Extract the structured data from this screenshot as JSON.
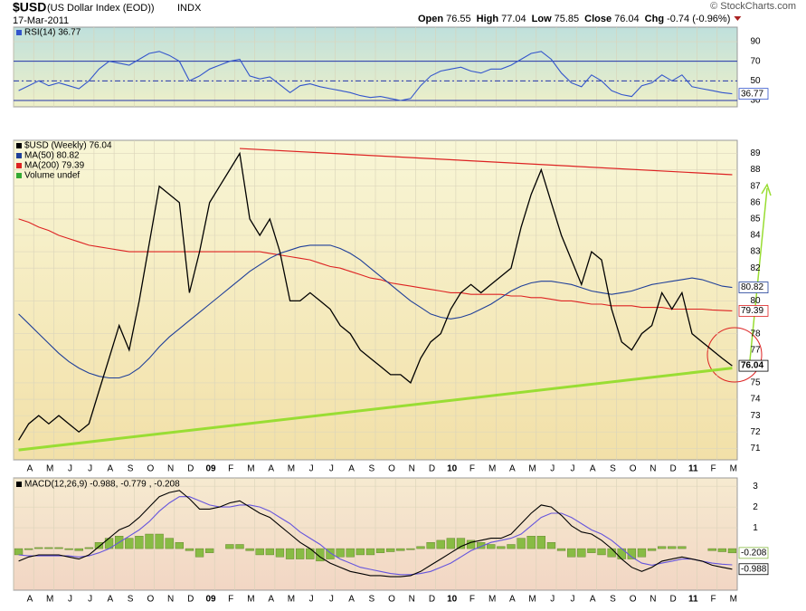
{
  "header": {
    "symbol": "$USD",
    "name": "(US Dollar Index (EOD))",
    "exchange": "INDX",
    "date": "17-Mar-2011",
    "quote": [
      {
        "label": "Open",
        "value": "76.55"
      },
      {
        "label": "High",
        "value": "77.04"
      },
      {
        "label": "Low",
        "value": "75.85"
      },
      {
        "label": "Close",
        "value": "76.04"
      },
      {
        "label": "Chg",
        "value": "-0.74 (-0.96%)"
      }
    ],
    "credit": "© StockCharts.com"
  },
  "chart_data": [
    {
      "type": "line",
      "ylim": [
        23.5,
        104.8
      ],
      "yticks": [
        30,
        50,
        70,
        90
      ],
      "levels": [
        30,
        50,
        70
      ],
      "series": [
        {
          "name": "RSI(14) 36.77",
          "color": "#3355cc",
          "end_label": "36.77",
          "values": [
            40,
            45,
            50,
            45,
            48,
            45,
            42,
            50,
            62,
            70,
            68,
            66,
            72,
            78,
            80,
            76,
            70,
            50,
            55,
            62,
            66,
            70,
            72,
            55,
            52,
            54,
            46,
            38,
            45,
            47,
            44,
            42,
            40,
            38,
            35,
            33,
            34,
            32,
            30,
            32,
            45,
            55,
            60,
            62,
            64,
            60,
            58,
            62,
            62,
            66,
            72,
            78,
            80,
            72,
            58,
            48,
            44,
            56,
            50,
            40,
            36,
            34,
            45,
            48,
            56,
            50,
            56,
            44,
            42,
            40,
            38,
            36.77
          ]
        }
      ]
    },
    {
      "type": "line",
      "ylim": [
        70.3,
        89.8
      ],
      "yticks": [
        71,
        72,
        73,
        74,
        75,
        77,
        78,
        80,
        82,
        83,
        84,
        85,
        86,
        87,
        88,
        89
      ],
      "categories": [
        "A",
        null,
        "M",
        null,
        "J",
        null,
        "J",
        null,
        "A",
        null,
        "S",
        null,
        "O",
        null,
        "N",
        null,
        "D",
        null,
        "09",
        null,
        "F",
        null,
        "M",
        null,
        "A",
        null,
        "M",
        null,
        "J",
        null,
        "J",
        null,
        "A",
        null,
        "S",
        null,
        "O",
        null,
        "N",
        null,
        "D",
        null,
        "10",
        null,
        "F",
        null,
        "M",
        null,
        "A",
        null,
        "M",
        null,
        "J",
        null,
        "J",
        null,
        "A",
        null,
        "S",
        null,
        "O",
        null,
        "N",
        null,
        "D",
        null,
        "11",
        null,
        "F",
        null,
        "M",
        null
      ],
      "legend_extra": {
        "name": "Volume undef",
        "color": "#33aa33"
      },
      "series": [
        {
          "name": "$USD (Weekly) 76.04",
          "color": "#000000",
          "end_label": "76.04",
          "values": [
            71.5,
            72.5,
            73,
            72.5,
            73,
            72.5,
            72,
            72.5,
            74.5,
            76.5,
            78.5,
            77,
            80,
            83.5,
            87,
            86.5,
            86,
            80.5,
            83,
            86,
            87,
            88,
            89,
            85,
            84,
            85,
            83,
            80,
            80,
            80.5,
            80,
            79.5,
            78.5,
            78,
            77,
            76.5,
            76,
            75.5,
            75.5,
            75,
            76.5,
            77.5,
            78,
            79.5,
            80.5,
            81,
            80.5,
            81,
            81.5,
            82,
            84.5,
            86.5,
            88,
            86,
            84,
            82.5,
            81,
            83,
            82.5,
            79.5,
            77.5,
            77,
            78,
            78.5,
            80.5,
            79.5,
            80.5,
            78,
            77.5,
            77,
            76.5,
            76.04
          ]
        },
        {
          "name": "MA(50) 80.82",
          "color": "#1f3f99",
          "end_label": "80.82",
          "values": [
            79.2,
            78.6,
            78,
            77.4,
            76.8,
            76.3,
            75.9,
            75.6,
            75.4,
            75.3,
            75.3,
            75.5,
            75.9,
            76.5,
            77.2,
            77.8,
            78.3,
            78.8,
            79.3,
            79.8,
            80.3,
            80.8,
            81.3,
            81.8,
            82.2,
            82.6,
            82.9,
            83.1,
            83.3,
            83.4,
            83.4,
            83.4,
            83.2,
            82.9,
            82.5,
            82,
            81.5,
            81,
            80.5,
            80,
            79.6,
            79.2,
            79.0,
            78.9,
            79.0,
            79.2,
            79.5,
            79.8,
            80.2,
            80.6,
            80.9,
            81.1,
            81.2,
            81.2,
            81.1,
            81,
            80.8,
            80.6,
            80.5,
            80.4,
            80.5,
            80.6,
            80.8,
            81,
            81.1,
            81.2,
            81.3,
            81.4,
            81.3,
            81.1,
            80.9,
            80.82
          ]
        },
        {
          "name": "MA(200) 79.39",
          "color": "#dd2222",
          "end_label": "79.39",
          "values": [
            85,
            84.8,
            84.5,
            84.3,
            84,
            83.8,
            83.6,
            83.4,
            83.3,
            83.2,
            83.1,
            83,
            83,
            83,
            83,
            83,
            83,
            83,
            83,
            83,
            83,
            83,
            83,
            83,
            83,
            82.9,
            82.8,
            82.7,
            82.6,
            82.5,
            82.3,
            82.1,
            82,
            81.8,
            81.6,
            81.4,
            81.3,
            81.1,
            81,
            80.9,
            80.8,
            80.7,
            80.6,
            80.5,
            80.5,
            80.4,
            80.4,
            80.4,
            80.4,
            80.3,
            80.3,
            80.2,
            80.2,
            80.1,
            80,
            80,
            79.9,
            79.8,
            79.8,
            79.7,
            79.7,
            79.7,
            79.6,
            79.6,
            79.6,
            79.5,
            79.5,
            79.5,
            79.5,
            79.45,
            79.42,
            79.39
          ]
        }
      ],
      "trendlines": [
        {
          "color": "#99dd33",
          "x": [
            0,
            71
          ],
          "values": [
            70.9,
            75.9
          ]
        },
        {
          "color": "#dd2222",
          "x": [
            22,
            71
          ],
          "values": [
            89.3,
            87.7
          ]
        }
      ]
    },
    {
      "type": "macd",
      "ylim": [
        -2,
        3.4
      ],
      "yticks": [
        1,
        2,
        3
      ],
      "title": [
        {
          "text": "MACD(12,26,9) -0.988,",
          "color": "#000000"
        },
        {
          "text": "-0.779",
          "color": "#3333cc"
        },
        {
          "text": ", -0.208",
          "color": "#33aa33"
        }
      ],
      "categories": [
        "A",
        null,
        "M",
        null,
        "J",
        null,
        "J",
        null,
        "A",
        null,
        "S",
        null,
        "O",
        null,
        "N",
        null,
        "D",
        null,
        "09",
        null,
        "F",
        null,
        "M",
        null,
        "A",
        null,
        "M",
        null,
        "J",
        null,
        "J",
        null,
        "A",
        null,
        "S",
        null,
        "O",
        null,
        "N",
        null,
        "D",
        null,
        "10",
        null,
        "F",
        null,
        "M",
        null,
        "A",
        null,
        "M",
        null,
        "J",
        null,
        "J",
        null,
        "A",
        null,
        "S",
        null,
        "O",
        null,
        "N",
        null,
        "D",
        null,
        "11",
        null,
        "F",
        null,
        "M",
        null
      ],
      "series": [
        {
          "name": "Histogram",
          "kind": "bar",
          "color": "#88bb44",
          "end_label": "-0.208",
          "values": [
            -0.3,
            -0.05,
            0.05,
            0.05,
            0.05,
            -0.05,
            -0.1,
            0.05,
            0.3,
            0.5,
            0.6,
            0.5,
            0.6,
            0.7,
            0.7,
            0.5,
            0.3,
            -0.1,
            -0.4,
            -0.2,
            0,
            0.2,
            0.2,
            -0.1,
            -0.3,
            -0.3,
            -0.4,
            -0.5,
            -0.5,
            -0.5,
            -0.6,
            -0.5,
            -0.4,
            -0.4,
            -0.3,
            -0.3,
            -0.2,
            -0.15,
            -0.1,
            -0.05,
            0.1,
            0.3,
            0.4,
            0.5,
            0.5,
            0.4,
            0.3,
            0.2,
            0.1,
            0.2,
            0.5,
            0.6,
            0.6,
            0.3,
            -0.1,
            -0.4,
            -0.4,
            -0.2,
            -0.3,
            -0.4,
            -0.5,
            -0.5,
            -0.4,
            -0.1,
            0.1,
            0.1,
            0.1,
            0,
            0,
            -0.1,
            -0.15,
            -0.208
          ]
        },
        {
          "name": "Signal",
          "kind": "line",
          "color": "#6655dd",
          "values": [
            -0.3,
            -0.35,
            -0.35,
            -0.35,
            -0.35,
            -0.35,
            -0.4,
            -0.35,
            -0.2,
            0.0,
            0.3,
            0.6,
            0.9,
            1.3,
            1.8,
            2.2,
            2.5,
            2.5,
            2.3,
            2.1,
            2.0,
            2.0,
            2.1,
            2.1,
            2.0,
            1.8,
            1.5,
            1.2,
            0.8,
            0.5,
            0.2,
            -0.2,
            -0.5,
            -0.7,
            -0.9,
            -1.0,
            -1.1,
            -1.2,
            -1.25,
            -1.25,
            -1.2,
            -1.1,
            -0.9,
            -0.7,
            -0.4,
            -0.1,
            0.1,
            0.3,
            0.4,
            0.5,
            0.7,
            1.1,
            1.5,
            1.7,
            1.7,
            1.5,
            1.2,
            0.9,
            0.7,
            0.4,
            0.0,
            -0.4,
            -0.7,
            -0.8,
            -0.7,
            -0.6,
            -0.5,
            -0.5,
            -0.6,
            -0.7,
            -0.75,
            -0.779
          ]
        },
        {
          "name": "MACD",
          "kind": "line",
          "color": "#000000",
          "end_label": "-0.988",
          "values": [
            -0.6,
            -0.4,
            -0.3,
            -0.3,
            -0.3,
            -0.4,
            -0.5,
            -0.3,
            0.1,
            0.5,
            0.9,
            1.1,
            1.5,
            2.0,
            2.5,
            2.7,
            2.8,
            2.4,
            1.9,
            1.9,
            2.0,
            2.2,
            2.3,
            2.0,
            1.7,
            1.5,
            1.1,
            0.7,
            0.3,
            0.0,
            -0.4,
            -0.7,
            -0.9,
            -1.1,
            -1.2,
            -1.3,
            -1.3,
            -1.35,
            -1.35,
            -1.3,
            -1.1,
            -0.8,
            -0.5,
            -0.2,
            0.1,
            0.3,
            0.4,
            0.5,
            0.5,
            0.7,
            1.2,
            1.7,
            2.1,
            2.0,
            1.6,
            1.1,
            0.8,
            0.7,
            0.4,
            0.0,
            -0.5,
            -0.9,
            -1.1,
            -0.9,
            -0.6,
            -0.5,
            -0.4,
            -0.5,
            -0.6,
            -0.8,
            -0.9,
            -0.988
          ]
        }
      ]
    }
  ]
}
